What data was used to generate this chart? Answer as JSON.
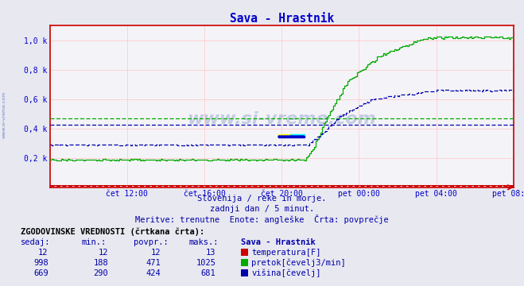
{
  "title": "Sava - Hrastnik",
  "bg_color": "#e8e8f0",
  "plot_bg_color": "#f4f4f8",
  "grid_color": "#ffcccc",
  "spine_color": "#cc0000",
  "x_ticks_pos": [
    48,
    96,
    144,
    192,
    240,
    288
  ],
  "x_ticks_labels": [
    "čet 12:00",
    "čet 16:00",
    "čet 20:00",
    "pet 00:00",
    "pet 04:00",
    "pet 08:00"
  ],
  "y_ticks_pos": [
    200,
    400,
    600,
    800,
    1000
  ],
  "y_ticks_labels": [
    "0,2 k",
    "0,4 k",
    "0,6 k",
    "0,8 k",
    "1,0 k"
  ],
  "temp_color": "#cc0000",
  "flow_color": "#00aa00",
  "height_color": "#0000aa",
  "flow_avg": 471,
  "height_avg": 424,
  "temp_avg": 12,
  "subtitle1": "Slovenija / reke in morje.",
  "subtitle2": "zadnji dan / 5 minut.",
  "subtitle3": "Meritve: trenutne  Enote: angleške  Črta: povprečje",
  "table_title": "ZGODOVINSKE VREDNOSTI (črtkana črta):",
  "col_headers": [
    "sedaj:",
    "min.:",
    "povpr.:",
    "maks.:",
    "Sava - Hrastnik"
  ],
  "row1": [
    "12",
    "12",
    "12",
    "13",
    "temperatura[F]"
  ],
  "row2": [
    "998",
    "188",
    "471",
    "1025",
    "pretok[čevelj3/min]"
  ],
  "row3": [
    "669",
    "290",
    "424",
    "681",
    "višina[čevelj]"
  ],
  "watermark": "www.si-vreme.com",
  "watermark_color": "#4466aa",
  "left_label": "www.si-vreme.com",
  "left_label_color": "#6688bb"
}
